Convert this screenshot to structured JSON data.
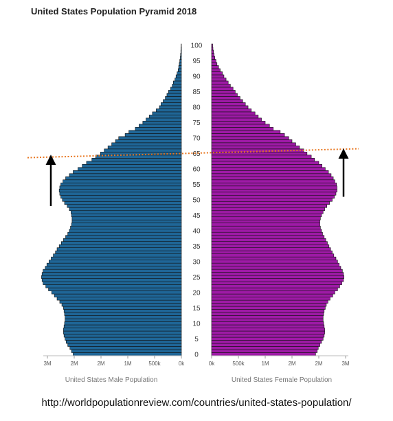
{
  "chart_data": {
    "type": "bar",
    "title": "United States Population Pyramid 2018",
    "age_tick_labels": [
      "0",
      "5",
      "10",
      "15",
      "20",
      "25",
      "30",
      "35",
      "40",
      "45",
      "50",
      "55",
      "60",
      "65",
      "70",
      "75",
      "80",
      "85",
      "90",
      "95",
      "100"
    ],
    "left_axis": {
      "label": "United States Male Population",
      "tick_labels": [
        "3M",
        "2M",
        "2M",
        "1M",
        "500k",
        "0k"
      ],
      "ticks": [
        2.5,
        2.0,
        1.5,
        1.0,
        0.5,
        0
      ]
    },
    "right_axis": {
      "label": "United States Female Population",
      "tick_labels": [
        "0k",
        "500k",
        "1M",
        "2M",
        "2M",
        "3M"
      ],
      "ticks": [
        0,
        0.5,
        1.0,
        1.5,
        2.0,
        2.5
      ]
    },
    "value_unit": "millions",
    "xlim": [
      0,
      2.5
    ],
    "ages": [
      0,
      100
    ],
    "series": [
      {
        "name": "United States Male Population",
        "color": "#1f6697",
        "values": [
          2.02,
          2.05,
          2.08,
          2.12,
          2.15,
          2.17,
          2.19,
          2.2,
          2.2,
          2.19,
          2.18,
          2.17,
          2.17,
          2.18,
          2.19,
          2.2,
          2.23,
          2.27,
          2.32,
          2.37,
          2.42,
          2.48,
          2.53,
          2.58,
          2.6,
          2.61,
          2.6,
          2.58,
          2.54,
          2.51,
          2.47,
          2.43,
          2.39,
          2.35,
          2.32,
          2.28,
          2.24,
          2.2,
          2.16,
          2.12,
          2.09,
          2.07,
          2.05,
          2.04,
          2.04,
          2.05,
          2.06,
          2.09,
          2.13,
          2.18,
          2.22,
          2.25,
          2.27,
          2.28,
          2.27,
          2.25,
          2.21,
          2.16,
          2.09,
          2.02,
          1.93,
          1.85,
          1.77,
          1.67,
          1.6,
          1.51,
          1.44,
          1.37,
          1.3,
          1.23,
          1.17,
          1.05,
          0.98,
          0.86,
          0.79,
          0.72,
          0.66,
          0.6,
          0.54,
          0.47,
          0.41,
          0.38,
          0.34,
          0.3,
          0.27,
          0.24,
          0.2,
          0.17,
          0.15,
          0.12,
          0.1,
          0.08,
          0.06,
          0.05,
          0.04,
          0.03,
          0.02,
          0.015,
          0.01,
          0.008,
          0.005
        ]
      },
      {
        "name": "United States Female Population",
        "color": "#9e1aa6",
        "values": [
          1.94,
          1.97,
          1.99,
          2.02,
          2.05,
          2.08,
          2.1,
          2.11,
          2.11,
          2.1,
          2.09,
          2.08,
          2.08,
          2.09,
          2.1,
          2.12,
          2.14,
          2.17,
          2.21,
          2.26,
          2.3,
          2.35,
          2.39,
          2.43,
          2.46,
          2.47,
          2.46,
          2.44,
          2.41,
          2.38,
          2.35,
          2.32,
          2.28,
          2.25,
          2.22,
          2.19,
          2.16,
          2.13,
          2.1,
          2.07,
          2.05,
          2.03,
          2.02,
          2.02,
          2.03,
          2.05,
          2.08,
          2.11,
          2.15,
          2.2,
          2.25,
          2.29,
          2.32,
          2.34,
          2.34,
          2.33,
          2.3,
          2.27,
          2.23,
          2.18,
          2.12,
          2.06,
          2.0,
          1.92,
          1.86,
          1.78,
          1.72,
          1.64,
          1.57,
          1.5,
          1.44,
          1.36,
          1.28,
          1.15,
          1.08,
          1.0,
          0.93,
          0.87,
          0.81,
          0.74,
          0.68,
          0.63,
          0.58,
          0.53,
          0.48,
          0.44,
          0.4,
          0.35,
          0.31,
          0.27,
          0.23,
          0.2,
          0.16,
          0.13,
          0.1,
          0.08,
          0.06,
          0.045,
          0.035,
          0.025,
          0.02
        ]
      }
    ],
    "annotations": {
      "reference_line": {
        "age": 65,
        "style": "dotted",
        "color": "#e8761f"
      },
      "arrows": [
        {
          "side": "left",
          "direction": "up",
          "from_age": 48,
          "to_age": 63
        },
        {
          "side": "right",
          "direction": "up",
          "from_age": 51,
          "to_age": 65
        }
      ]
    },
    "grid": false,
    "legend": "none"
  },
  "source": {
    "url_text": "http://worldpopulationreview.com/countries/united-states-population/"
  }
}
